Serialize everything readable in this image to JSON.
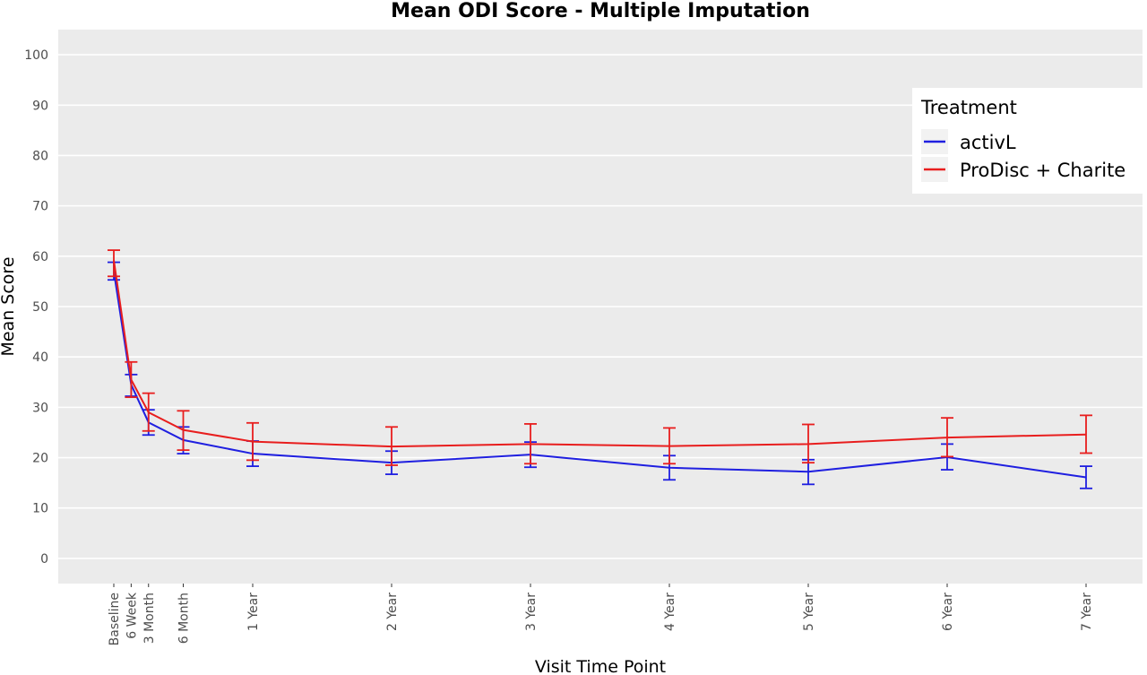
{
  "chart_data": {
    "type": "line",
    "title": "Mean ODI Score - Multiple Imputation",
    "xlabel": "Visit Time Point",
    "ylabel": "Mean Score",
    "ylim": [
      -5,
      105
    ],
    "yticks": [
      0,
      10,
      20,
      30,
      40,
      50,
      60,
      70,
      80,
      90,
      100
    ],
    "x_months": [
      0,
      1.5,
      3,
      6,
      12,
      24,
      36,
      48,
      60,
      72,
      84
    ],
    "categories": [
      "Baseline",
      "6 Week",
      "3 Month",
      "6 Month",
      "1 Year",
      "2 Year",
      "3 Year",
      "4 Year",
      "5 Year",
      "6 Year",
      "7 Year"
    ],
    "grid": true,
    "legend": {
      "title": "Treatment",
      "position": "top-right"
    },
    "series": [
      {
        "name": "activL",
        "color": "#1f1fe0",
        "values": [
          57.0,
          34.5,
          27.0,
          23.5,
          20.8,
          19.0,
          20.6,
          18.0,
          17.2,
          20.1,
          16.1
        ],
        "lower": [
          55.3,
          32.2,
          24.5,
          20.8,
          18.3,
          16.7,
          18.1,
          15.6,
          14.7,
          17.6,
          13.9
        ],
        "upper": [
          58.8,
          36.5,
          29.5,
          26.1,
          23.3,
          21.3,
          23.1,
          20.4,
          19.6,
          22.7,
          18.3
        ]
      },
      {
        "name": "ProDisc + Charite",
        "color": "#e81e1e",
        "values": [
          59.2,
          35.5,
          29.0,
          25.5,
          23.2,
          22.2,
          22.7,
          22.3,
          22.7,
          24.0,
          24.6
        ],
        "lower": [
          56.0,
          32.0,
          25.3,
          21.5,
          19.5,
          18.5,
          18.8,
          18.8,
          19.0,
          20.2,
          20.9
        ],
        "upper": [
          61.2,
          39.0,
          32.8,
          29.3,
          26.9,
          26.1,
          26.7,
          25.9,
          26.6,
          27.9,
          28.4
        ]
      }
    ]
  }
}
